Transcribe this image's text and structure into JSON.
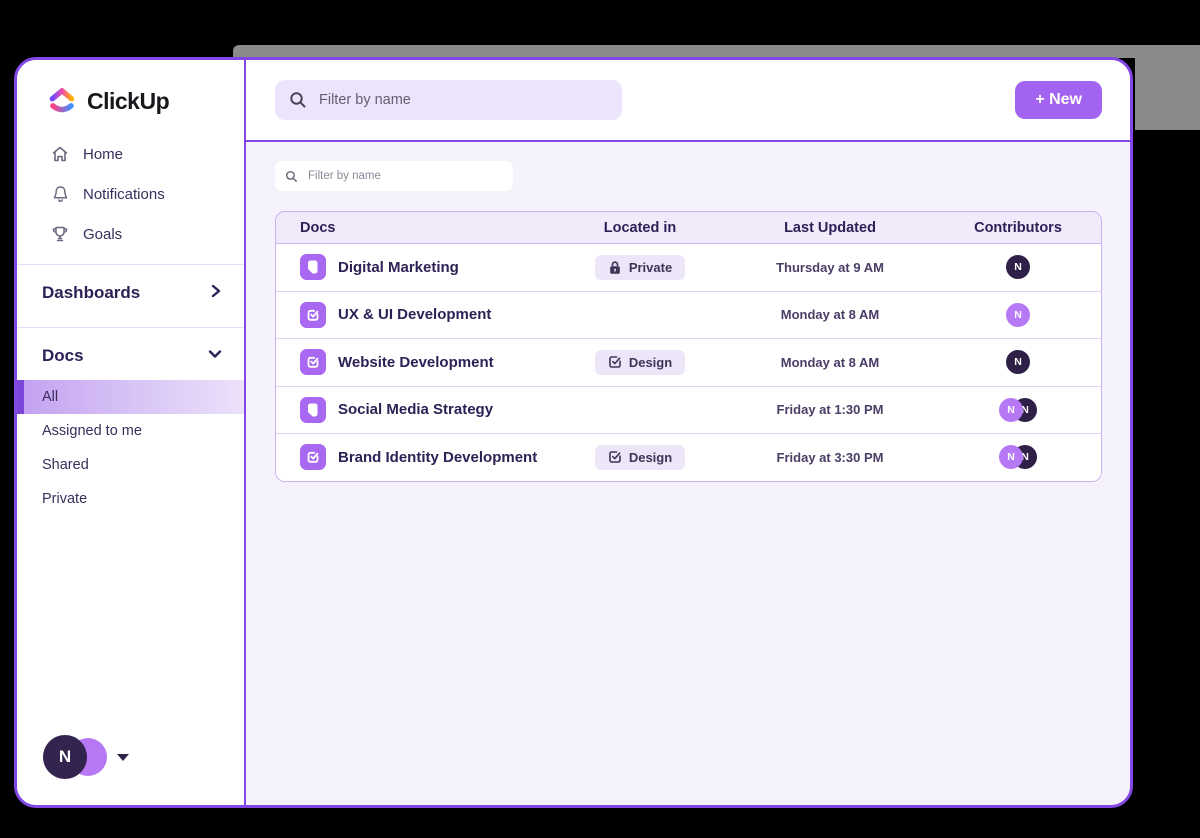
{
  "app": {
    "logo_text": "ClickUp"
  },
  "sidebar": {
    "nav": [
      {
        "label": "Home",
        "icon": "home-icon"
      },
      {
        "label": "Notifications",
        "icon": "bell-icon"
      },
      {
        "label": "Goals",
        "icon": "trophy-icon"
      }
    ],
    "sections": [
      {
        "label": "Dashboards",
        "chevron": "right"
      },
      {
        "label": "Docs",
        "chevron": "down"
      }
    ],
    "docs_items": [
      {
        "label": "All",
        "selected": true
      },
      {
        "label": "Assigned to me",
        "selected": false
      },
      {
        "label": "Shared",
        "selected": false
      },
      {
        "label": "Private",
        "selected": false
      }
    ],
    "user_initial": "N"
  },
  "topbar": {
    "search_placeholder": "Filter by name",
    "new_button_label": "+ New"
  },
  "content": {
    "filter_placeholder": "Filter by name"
  },
  "table": {
    "columns": [
      "Docs",
      "Located in",
      "Last Updated",
      "Contributors"
    ],
    "rows": [
      {
        "name": "Digital Marketing",
        "icon": "doc",
        "badge": {
          "label": "Private",
          "icon": "lock-icon"
        },
        "updated": "Thursday at 9 AM",
        "avatars": [
          "dark"
        ]
      },
      {
        "name": "UX & UI Development",
        "icon": "task",
        "badge": null,
        "updated": "Monday at 8 AM",
        "avatars": [
          "light"
        ]
      },
      {
        "name": "Website Development",
        "icon": "task",
        "badge": {
          "label": "Design",
          "icon": "checkbox-icon"
        },
        "updated": "Monday at 8 AM",
        "avatars": [
          "dark"
        ]
      },
      {
        "name": "Social Media Strategy",
        "icon": "doc",
        "badge": null,
        "updated": "Friday at 1:30 PM",
        "avatars": [
          "light",
          "dark"
        ]
      },
      {
        "name": "Brand Identity Development",
        "icon": "task",
        "badge": {
          "label": "Design",
          "icon": "checkbox-icon"
        },
        "updated": "Friday at 3:30 PM",
        "avatars": [
          "light",
          "dark"
        ]
      }
    ],
    "avatar_initial": "N"
  },
  "colors": {
    "accent_purple": "#8247e5",
    "button_purple": "#a263f0",
    "icon_purple": "#a968f2",
    "avatar_dark": "#2f2047",
    "avatar_light": "#b678f5",
    "badge_bg": "#ede6f9",
    "content_bg": "#f6f2fc"
  }
}
